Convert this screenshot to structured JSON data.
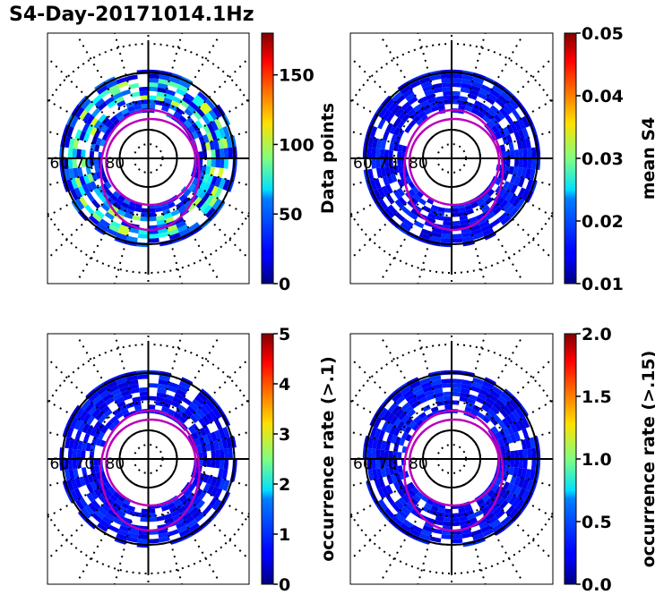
{
  "title": "S4-Day-20171014.1Hz",
  "panels": [
    {
      "id": "data-points",
      "colorbar": {
        "label": "Data points",
        "ticks": [
          "0",
          "50",
          "100",
          "150"
        ],
        "tick_values": [
          0,
          50,
          100,
          150
        ],
        "range": [
          0,
          180
        ]
      },
      "fill": "mixed"
    },
    {
      "id": "mean-s4",
      "colorbar": {
        "label": "mean S4",
        "ticks": [
          "0.01",
          "0.02",
          "0.03",
          "0.04",
          "0.05"
        ],
        "tick_values": [
          0.01,
          0.02,
          0.03,
          0.04,
          0.05
        ],
        "range": [
          0.01,
          0.05
        ]
      },
      "fill": "low"
    },
    {
      "id": "occurrence-1",
      "colorbar": {
        "label": "occurrence rate (>.1)",
        "ticks": [
          "0",
          "1",
          "2",
          "3",
          "4",
          "5"
        ],
        "tick_values": [
          0,
          1,
          2,
          3,
          4,
          5
        ],
        "range": [
          0,
          5
        ]
      },
      "fill": "low"
    },
    {
      "id": "occurrence-15",
      "colorbar": {
        "label": "occurrence rate (>.15)",
        "ticks": [
          "0.0",
          "0.5",
          "1.0",
          "1.5",
          "2.0"
        ],
        "tick_values": [
          0,
          0.5,
          1.0,
          1.5,
          2.0
        ],
        "range": [
          0,
          2
        ]
      },
      "fill": "low"
    }
  ],
  "polar_labels": {
    "lat60": "60",
    "lat70": "70",
    "lat80": "80"
  },
  "colors": {
    "oval": "#bb00bb",
    "axis": "#000000",
    "cmap": "jet"
  },
  "chart_data": {
    "type": "heatmap",
    "title": "S4-Day-20171014.1Hz",
    "projection": "polar (magnetic latitude / MLT)",
    "latitude_circles": [
      50,
      60,
      70,
      80
    ],
    "colormap": "jet",
    "panels": [
      "Data points",
      "mean S4",
      "occurrence rate (>.1)",
      "occurrence rate (>.15)"
    ]
  }
}
